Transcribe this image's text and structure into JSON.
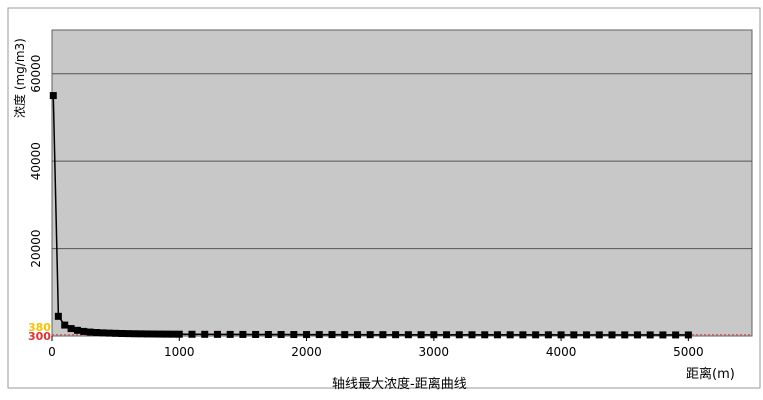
{
  "chart_data": {
    "type": "line",
    "title": "轴线最大浓度-距离曲线",
    "xlabel": "距离(m)",
    "ylabel": "浓度 (mg/m3)",
    "xlim": [
      0,
      5500
    ],
    "ylim": [
      0,
      70000
    ],
    "x_ticks": [
      0,
      1000,
      2000,
      3000,
      4000,
      5000
    ],
    "y_ticks": [
      20000,
      40000,
      60000
    ],
    "grid": "horizontal",
    "threshold_labels": [
      "380",
      "300"
    ],
    "colors": {
      "plot_background": "#c8c8c8",
      "series": "#000000",
      "threshold_line": "#e04040",
      "threshold_text_1": "#f5c400",
      "threshold_text_2": "#e03030"
    },
    "series": [
      {
        "x": [
          10,
          50,
          100,
          150,
          200,
          250,
          300,
          350,
          400,
          450,
          500,
          550,
          600,
          650,
          700,
          750,
          800,
          850,
          900,
          950,
          1000,
          1100,
          1200,
          1300,
          1400,
          1500,
          1600,
          1700,
          1800,
          1900,
          2000,
          2100,
          2200,
          2300,
          2400,
          2500,
          2600,
          2700,
          2800,
          2900,
          3000,
          3100,
          3200,
          3300,
          3400,
          3500,
          3600,
          3700,
          3800,
          3900,
          4000,
          4100,
          4200,
          4300,
          4400,
          4500,
          4600,
          4700,
          4800,
          4900,
          5000
        ],
        "y": [
          55000,
          4500,
          2500,
          1700,
          1300,
          1050,
          900,
          800,
          720,
          660,
          610,
          570,
          540,
          510,
          490,
          470,
          455,
          440,
          430,
          420,
          410,
          395,
          385,
          375,
          365,
          358,
          350,
          344,
          338,
          332,
          327,
          322,
          317,
          313,
          309,
          305,
          301,
          298,
          294,
          291,
          288,
          285,
          282,
          279,
          277,
          274,
          272,
          269,
          267,
          265,
          262,
          260,
          258,
          256,
          254,
          252,
          250,
          248,
          246,
          244,
          243
        ]
      }
    ]
  }
}
